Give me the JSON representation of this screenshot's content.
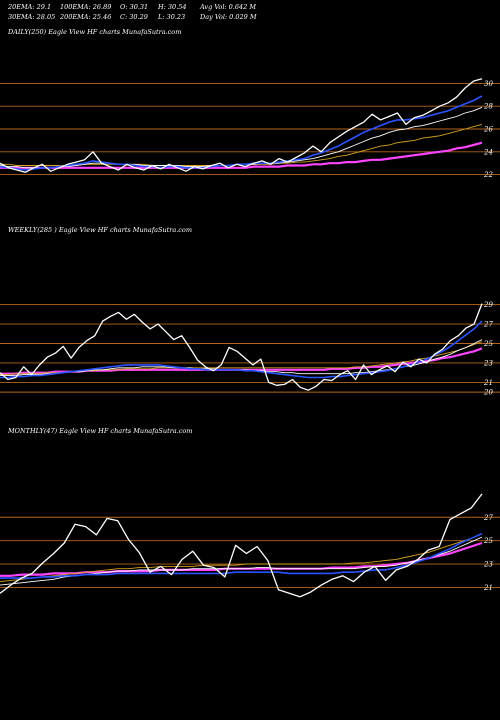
{
  "header": {
    "ema20": "20EMA: 29.1",
    "ema100": "100EMA: 26.89",
    "open": "O: 30.31",
    "high": "H: 30.54",
    "avgvol": "Avg Vol: 0.642  M",
    "ema30": "30EMA: 28.05",
    "ema200": "200EMA: 25.46",
    "close": "C: 30.29",
    "low": "L: 30.23",
    "dayvol": "Day Vol: 0.029 M"
  },
  "colors": {
    "background": "#000000",
    "price": "#ffffff",
    "ma_fast": "#2a52ff",
    "ma_long": "#ff44ff",
    "ma_mid1": "#ffffff",
    "ma_mid2": "#d4a020",
    "ma_mid3": "#bbbbbb",
    "level_line": "#b5651d"
  },
  "chart_data": [
    {
      "type": "line",
      "title": "DAILY(250) Eagle  View  HF charts MunafaSutra.com",
      "ylim": [
        21,
        31
      ],
      "yticks": [
        22,
        24,
        26,
        28,
        30
      ],
      "levels": [
        22,
        24,
        26,
        28,
        30
      ],
      "series": [
        {
          "role": "price",
          "values": [
            23.0,
            22.6,
            22.4,
            22.2,
            22.6,
            22.9,
            22.3,
            22.6,
            22.9,
            23.1,
            23.3,
            24.0,
            23.0,
            22.7,
            22.4,
            22.9,
            22.6,
            22.4,
            22.8,
            22.5,
            22.9,
            22.6,
            22.3,
            22.7,
            22.5,
            22.8,
            23.0,
            22.6,
            22.9,
            22.7,
            23.0,
            23.2,
            22.9,
            23.4,
            23.1,
            23.5,
            23.9,
            24.5,
            24.0,
            24.8,
            25.3,
            25.8,
            26.2,
            26.6,
            27.3,
            26.8,
            27.1,
            27.4,
            26.4,
            27.0,
            27.2,
            27.6,
            28.0,
            28.3,
            28.8,
            29.6,
            30.2,
            30.4
          ]
        },
        {
          "role": "ma_fast",
          "values": [
            22.7,
            22.6,
            22.5,
            22.4,
            22.5,
            22.6,
            22.6,
            22.7,
            22.8,
            22.9,
            23.0,
            23.2,
            23.1,
            23.0,
            22.9,
            22.9,
            22.8,
            22.7,
            22.7,
            22.6,
            22.7,
            22.7,
            22.6,
            22.6,
            22.6,
            22.7,
            22.8,
            22.8,
            22.9,
            22.9,
            23.0,
            23.0,
            23.0,
            23.1,
            23.2,
            23.3,
            23.4,
            23.7,
            23.9,
            24.2,
            24.5,
            24.9,
            25.3,
            25.7,
            26.0,
            26.3,
            26.6,
            26.8,
            26.8,
            26.9,
            27.0,
            27.2,
            27.4,
            27.6,
            27.9,
            28.2,
            28.5,
            28.9
          ]
        },
        {
          "role": "ma_mid1",
          "values": [
            22.8,
            22.7,
            22.7,
            22.6,
            22.6,
            22.6,
            22.6,
            22.7,
            22.7,
            22.8,
            22.9,
            23.0,
            23.0,
            23.0,
            22.9,
            22.9,
            22.9,
            22.8,
            22.8,
            22.8,
            22.8,
            22.8,
            22.7,
            22.7,
            22.7,
            22.8,
            22.8,
            22.8,
            22.9,
            22.9,
            22.9,
            23.0,
            23.0,
            23.0,
            23.1,
            23.2,
            23.3,
            23.4,
            23.6,
            23.8,
            24.0,
            24.3,
            24.6,
            24.9,
            25.2,
            25.4,
            25.7,
            25.9,
            26.0,
            26.2,
            26.3,
            26.5,
            26.7,
            26.9,
            27.1,
            27.4,
            27.6,
            27.9
          ]
        },
        {
          "role": "ma_mid2",
          "values": [
            22.9,
            22.9,
            22.8,
            22.8,
            22.8,
            22.8,
            22.8,
            22.8,
            22.8,
            22.8,
            22.9,
            22.9,
            22.9,
            22.9,
            22.9,
            22.9,
            22.9,
            22.9,
            22.8,
            22.8,
            22.8,
            22.8,
            22.8,
            22.8,
            22.8,
            22.8,
            22.8,
            22.8,
            22.9,
            22.9,
            22.9,
            22.9,
            22.9,
            23.0,
            23.0,
            23.1,
            23.1,
            23.2,
            23.3,
            23.4,
            23.6,
            23.7,
            23.9,
            24.1,
            24.3,
            24.5,
            24.6,
            24.8,
            24.9,
            25.0,
            25.2,
            25.3,
            25.4,
            25.6,
            25.8,
            26.0,
            26.2,
            26.4
          ]
        },
        {
          "role": "ma_long",
          "values": [
            22.6,
            22.6,
            22.6,
            22.6,
            22.6,
            22.6,
            22.6,
            22.6,
            22.6,
            22.6,
            22.6,
            22.6,
            22.6,
            22.6,
            22.6,
            22.6,
            22.6,
            22.6,
            22.6,
            22.6,
            22.6,
            22.6,
            22.6,
            22.6,
            22.6,
            22.6,
            22.6,
            22.6,
            22.6,
            22.6,
            22.7,
            22.7,
            22.7,
            22.7,
            22.8,
            22.8,
            22.8,
            22.9,
            22.9,
            23.0,
            23.0,
            23.1,
            23.1,
            23.2,
            23.3,
            23.3,
            23.4,
            23.5,
            23.6,
            23.7,
            23.8,
            23.9,
            24.0,
            24.1,
            24.3,
            24.4,
            24.6,
            24.8
          ]
        }
      ]
    },
    {
      "type": "line",
      "title": "WEEKLY(285                      ) Eagle  View  HF charts MunafaSutra.com",
      "ylim": [
        19.5,
        30.5
      ],
      "yticks": [
        20,
        21,
        23,
        25,
        27,
        29
      ],
      "levels": [
        20,
        21,
        23,
        25,
        27,
        29
      ],
      "series": [
        {
          "role": "price",
          "values": [
            22.0,
            21.3,
            21.5,
            22.6,
            21.8,
            22.8,
            23.6,
            24.0,
            24.7,
            23.5,
            24.6,
            25.3,
            25.8,
            27.3,
            27.8,
            28.2,
            27.5,
            28.0,
            27.2,
            26.5,
            27.0,
            26.2,
            25.4,
            25.8,
            24.6,
            23.3,
            22.6,
            22.2,
            22.8,
            24.6,
            24.2,
            23.5,
            22.8,
            23.4,
            21.0,
            20.7,
            20.8,
            21.3,
            20.5,
            20.2,
            20.6,
            21.3,
            21.2,
            21.8,
            22.2,
            21.3,
            22.8,
            21.8,
            22.3,
            22.7,
            22.1,
            23.1,
            22.6,
            23.4,
            23.0,
            23.9,
            24.4,
            25.3,
            25.8,
            26.6,
            27.0,
            29.1
          ]
        },
        {
          "role": "ma_fast",
          "values": [
            21.5,
            21.5,
            21.6,
            21.6,
            21.7,
            21.7,
            21.8,
            21.9,
            22.0,
            22.1,
            22.2,
            22.3,
            22.4,
            22.5,
            22.6,
            22.7,
            22.8,
            22.8,
            22.8,
            22.8,
            22.8,
            22.7,
            22.6,
            22.5,
            22.4,
            22.4,
            22.3,
            22.3,
            22.3,
            22.3,
            22.3,
            22.2,
            22.2,
            22.1,
            22.0,
            21.9,
            21.8,
            21.7,
            21.6,
            21.5,
            21.5,
            21.5,
            21.6,
            21.6,
            21.7,
            21.8,
            21.9,
            22.0,
            22.1,
            22.2,
            22.4,
            22.6,
            22.8,
            23.1,
            23.4,
            23.8,
            24.2,
            24.7,
            25.3,
            25.9,
            26.5,
            27.3
          ]
        },
        {
          "role": "ma_mid1",
          "values": [
            21.7,
            21.7,
            21.7,
            21.8,
            21.8,
            21.8,
            21.9,
            21.9,
            22.0,
            22.1,
            22.1,
            22.2,
            22.3,
            22.3,
            22.4,
            22.5,
            22.5,
            22.5,
            22.6,
            22.6,
            22.6,
            22.6,
            22.5,
            22.5,
            22.5,
            22.4,
            22.4,
            22.4,
            22.3,
            22.3,
            22.3,
            22.3,
            22.2,
            22.2,
            22.1,
            22.1,
            22.0,
            22.0,
            21.9,
            21.9,
            21.9,
            21.9,
            21.9,
            21.9,
            21.9,
            22.0,
            22.0,
            22.1,
            22.2,
            22.3,
            22.4,
            22.6,
            22.7,
            22.9,
            23.1,
            23.4,
            23.6,
            23.9,
            24.3,
            24.6,
            25.0,
            25.4
          ]
        },
        {
          "role": "ma_mid2",
          "values": [
            21.8,
            21.8,
            21.9,
            21.9,
            21.9,
            21.9,
            22.0,
            22.0,
            22.0,
            22.1,
            22.1,
            22.2,
            22.2,
            22.3,
            22.3,
            22.3,
            22.4,
            22.4,
            22.4,
            22.4,
            22.5,
            22.5,
            22.5,
            22.5,
            22.5,
            22.5,
            22.5,
            22.5,
            22.5,
            22.5,
            22.5,
            22.5,
            22.5,
            22.5,
            22.5,
            22.5,
            22.5,
            22.5,
            22.5,
            22.5,
            22.5,
            22.5,
            22.5,
            22.5,
            22.5,
            22.6,
            22.6,
            22.7,
            22.8,
            22.9,
            23.0,
            23.1,
            23.2,
            23.4,
            23.5,
            23.7,
            23.9,
            24.1,
            24.3,
            24.6,
            24.9,
            25.2
          ]
        },
        {
          "role": "ma_long",
          "values": [
            21.9,
            21.9,
            21.9,
            22.0,
            22.0,
            22.0,
            22.0,
            22.1,
            22.1,
            22.1,
            22.1,
            22.2,
            22.2,
            22.2,
            22.2,
            22.3,
            22.3,
            22.3,
            22.3,
            22.3,
            22.3,
            22.3,
            22.3,
            22.3,
            22.3,
            22.3,
            22.3,
            22.3,
            22.3,
            22.3,
            22.3,
            22.3,
            22.3,
            22.3,
            22.3,
            22.3,
            22.3,
            22.3,
            22.3,
            22.3,
            22.3,
            22.3,
            22.4,
            22.4,
            22.4,
            22.5,
            22.5,
            22.6,
            22.6,
            22.7,
            22.8,
            22.9,
            23.0,
            23.1,
            23.2,
            23.3,
            23.5,
            23.6,
            23.8,
            24.0,
            24.2,
            24.5
          ]
        }
      ]
    },
    {
      "type": "line",
      "title": "MONTHLY(47) Eagle  View  HF charts MunafaSutra.com",
      "ylim": [
        19.5,
        29.5
      ],
      "yticks": [
        21,
        23,
        25,
        27
      ],
      "levels": [
        21,
        23,
        25,
        27
      ],
      "series": [
        {
          "role": "price",
          "values": [
            20.5,
            21.2,
            21.8,
            22.2,
            23.1,
            23.9,
            24.8,
            26.4,
            26.2,
            25.5,
            26.9,
            26.7,
            25.1,
            24.0,
            22.3,
            22.8,
            22.1,
            23.4,
            24.1,
            22.9,
            22.7,
            21.9,
            24.6,
            23.9,
            24.5,
            23.3,
            20.8,
            20.5,
            20.2,
            20.6,
            21.2,
            21.7,
            22.0,
            21.5,
            22.3,
            22.8,
            21.6,
            22.5,
            22.8,
            23.4,
            24.2,
            24.5,
            26.8,
            27.3,
            27.8,
            29.0
          ]
        },
        {
          "role": "ma_fast",
          "values": [
            21.8,
            21.8,
            21.8,
            21.8,
            21.9,
            21.9,
            22.0,
            22.0,
            22.1,
            22.1,
            22.1,
            22.2,
            22.2,
            22.2,
            22.2,
            22.2,
            22.2,
            22.2,
            22.2,
            22.2,
            22.2,
            22.2,
            22.3,
            22.3,
            22.3,
            22.3,
            22.3,
            22.2,
            22.2,
            22.2,
            22.2,
            22.2,
            22.3,
            22.3,
            22.4,
            22.5,
            22.5,
            22.7,
            22.9,
            23.2,
            23.5,
            23.9,
            24.3,
            24.8,
            25.2,
            25.6
          ]
        },
        {
          "role": "ma_mid1",
          "values": [
            21.2,
            21.3,
            21.4,
            21.5,
            21.6,
            21.7,
            21.9,
            22.0,
            22.1,
            22.2,
            22.3,
            22.4,
            22.4,
            22.5,
            22.5,
            22.5,
            22.5,
            22.5,
            22.6,
            22.6,
            22.6,
            22.6,
            22.6,
            22.6,
            22.7,
            22.7,
            22.6,
            22.6,
            22.6,
            22.6,
            22.6,
            22.6,
            22.6,
            22.6,
            22.7,
            22.8,
            22.8,
            22.9,
            23.1,
            23.3,
            23.5,
            23.8,
            24.1,
            24.5,
            24.9,
            25.3
          ]
        },
        {
          "role": "ma_mid2",
          "values": [
            21.5,
            21.6,
            21.7,
            21.8,
            21.9,
            22.0,
            22.1,
            22.2,
            22.3,
            22.4,
            22.5,
            22.6,
            22.6,
            22.7,
            22.7,
            22.8,
            22.8,
            22.8,
            22.8,
            22.9,
            22.9,
            22.9,
            22.9,
            23.0,
            23.0,
            23.0,
            23.0,
            23.0,
            23.0,
            23.0,
            23.0,
            23.0,
            23.0,
            23.1,
            23.1,
            23.2,
            23.3,
            23.4,
            23.6,
            23.8,
            24.0,
            24.3,
            24.6,
            24.9,
            25.2,
            25.6
          ]
        },
        {
          "role": "ma_long",
          "values": [
            22.0,
            22.0,
            22.1,
            22.1,
            22.1,
            22.2,
            22.2,
            22.2,
            22.3,
            22.3,
            22.3,
            22.4,
            22.4,
            22.4,
            22.4,
            22.5,
            22.5,
            22.5,
            22.5,
            22.5,
            22.5,
            22.6,
            22.6,
            22.6,
            22.6,
            22.6,
            22.6,
            22.6,
            22.6,
            22.6,
            22.6,
            22.7,
            22.7,
            22.7,
            22.8,
            22.8,
            22.9,
            23.0,
            23.1,
            23.3,
            23.5,
            23.7,
            23.9,
            24.2,
            24.5,
            24.8
          ]
        }
      ]
    }
  ]
}
